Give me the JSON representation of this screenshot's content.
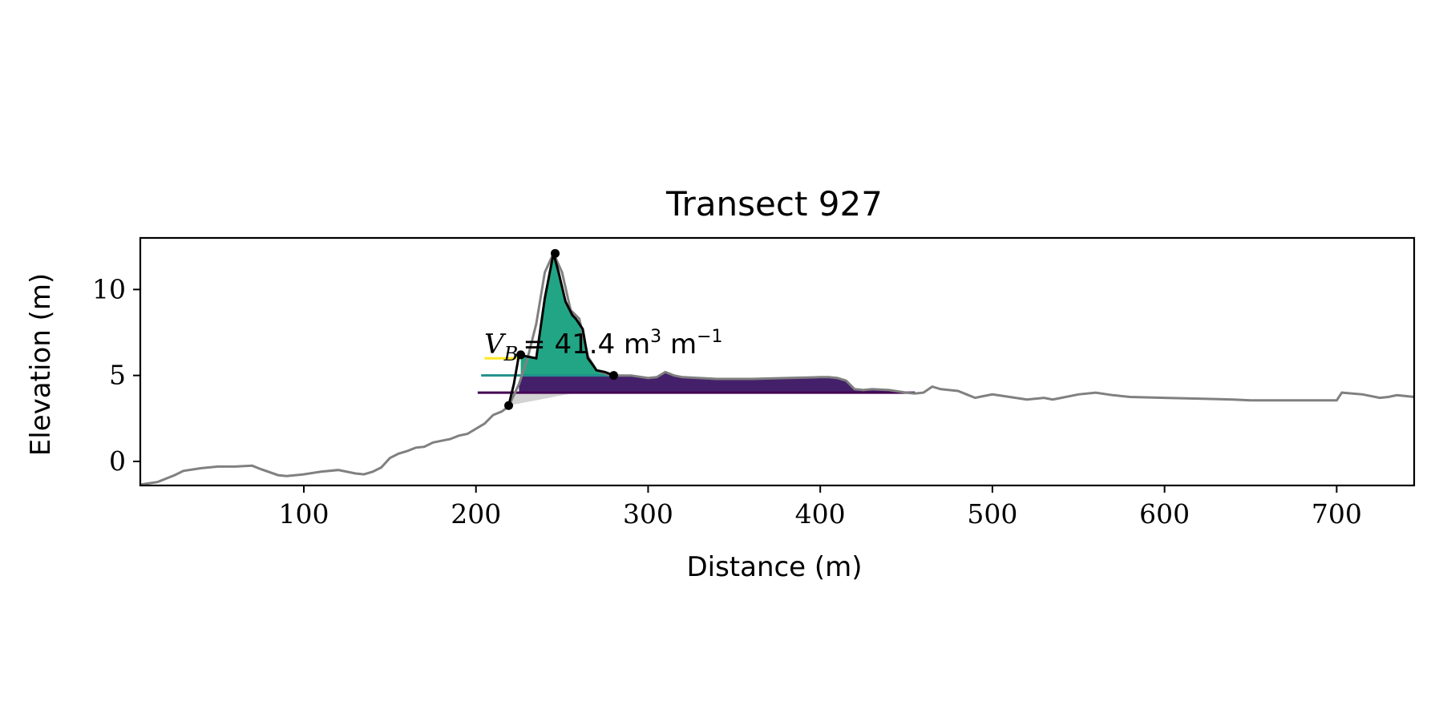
{
  "chart_data": {
    "type": "area",
    "title": "Transect 927",
    "xlabel": "Distance (m)",
    "ylabel": "Elevation (m)",
    "xlim": [
      5,
      745
    ],
    "ylim": [
      -1.4,
      13.0
    ],
    "xticks": [
      100,
      200,
      300,
      400,
      500,
      600,
      700
    ],
    "yticks": [
      0,
      5,
      10
    ],
    "grid": false,
    "colors": {
      "profile": "#808080",
      "dune_fill": "#21a585",
      "base_fill": "#44206b",
      "toe_fill": "#d3d3d3",
      "fit": "#000000",
      "level_yellow": "#fde725",
      "level_teal": "#21918c",
      "level_purple": "#440154"
    },
    "annotation": {
      "prefix": "V",
      "subscript": "B",
      "text": "= 41.4 m",
      "exp1": "3",
      "unit2": " m",
      "exp2": "−1"
    },
    "profile": {
      "x": [
        5,
        15,
        25,
        30,
        40,
        50,
        60,
        70,
        75,
        85,
        90,
        100,
        110,
        120,
        130,
        135,
        140,
        145,
        150,
        155,
        160,
        165,
        170,
        175,
        180,
        185,
        190,
        195,
        200,
        205,
        210,
        215,
        219,
        225,
        230,
        235,
        240,
        245,
        250,
        255,
        260,
        265,
        270,
        275,
        280,
        290,
        300,
        305,
        310,
        315,
        320,
        330,
        340,
        360,
        380,
        400,
        405,
        410,
        415,
        420,
        425,
        430,
        440,
        450,
        455,
        460,
        465,
        470,
        475,
        480,
        485,
        490,
        495,
        500,
        510,
        520,
        530,
        535,
        540,
        550,
        560,
        570,
        580,
        600,
        620,
        640,
        650,
        655,
        670,
        690,
        700,
        703,
        715,
        725,
        730,
        735,
        740,
        745
      ],
      "y": [
        -1.35,
        -1.2,
        -0.8,
        -0.55,
        -0.4,
        -0.3,
        -0.3,
        -0.25,
        -0.45,
        -0.8,
        -0.85,
        -0.75,
        -0.6,
        -0.5,
        -0.7,
        -0.75,
        -0.6,
        -0.35,
        0.2,
        0.45,
        0.6,
        0.8,
        0.85,
        1.1,
        1.2,
        1.3,
        1.5,
        1.6,
        1.9,
        2.2,
        2.7,
        2.9,
        3.2,
        4.5,
        6.0,
        8.0,
        11.0,
        12.1,
        11.0,
        8.8,
        8.3,
        6.1,
        5.3,
        5.1,
        5.0,
        5.0,
        4.85,
        4.9,
        5.2,
        5.0,
        4.9,
        4.85,
        4.8,
        4.8,
        4.85,
        4.9,
        4.9,
        4.85,
        4.7,
        4.2,
        4.15,
        4.2,
        4.15,
        4.0,
        3.95,
        4.0,
        4.35,
        4.2,
        4.15,
        4.1,
        3.9,
        3.7,
        3.8,
        3.9,
        3.75,
        3.6,
        3.7,
        3.6,
        3.7,
        3.9,
        4.0,
        3.85,
        3.75,
        3.7,
        3.65,
        3.6,
        3.55,
        3.55,
        3.55,
        3.55,
        3.55,
        4.0,
        3.9,
        3.7,
        3.75,
        3.85,
        3.8,
        3.75
      ]
    },
    "dune_fit": {
      "x": [
        219,
        222,
        225,
        230,
        235,
        240,
        245,
        248,
        252,
        256,
        258,
        262,
        265,
        268,
        270,
        275,
        280
      ],
      "y": [
        3.25,
        4.5,
        6.2,
        6.1,
        6.0,
        9.5,
        12.1,
        11.0,
        9.3,
        8.5,
        8.3,
        7.7,
        6.0,
        5.6,
        5.3,
        5.2,
        5.0
      ]
    },
    "key_points": [
      {
        "x": 219,
        "y": 3.25
      },
      {
        "x": 226,
        "y": 6.2
      },
      {
        "x": 246,
        "y": 12.1
      },
      {
        "x": 280,
        "y": 5.0
      }
    ],
    "levels": [
      {
        "y": 6.0,
        "x0": 205,
        "x1": 225,
        "color": "level_yellow"
      },
      {
        "y": 5.0,
        "x0": 203,
        "x1": 280,
        "color": "level_teal"
      },
      {
        "y": 4.0,
        "x0": 201,
        "x1": 455,
        "color": "level_purple"
      }
    ]
  }
}
